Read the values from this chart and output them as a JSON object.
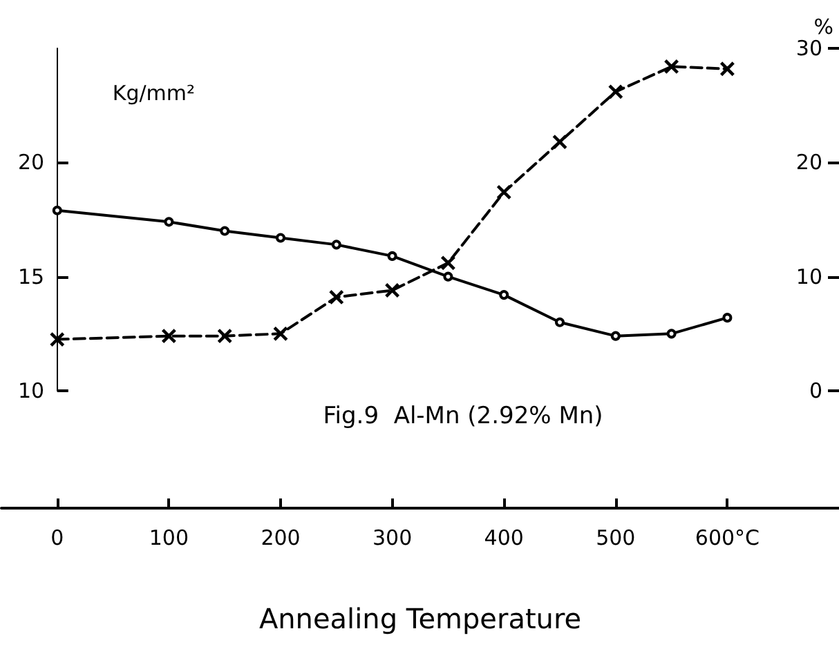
{
  "chart_data": {
    "type": "line",
    "title": "Fig.9  Al-Mn (2.92% Mn)",
    "xlabel": "Annealing Temperature",
    "ylabel": "Kg/mm²",
    "y2label": "%",
    "x": [
      0,
      100,
      150,
      200,
      250,
      300,
      350,
      400,
      450,
      500,
      550,
      600
    ],
    "series": [
      {
        "color": "#000000",
        "marker": "circle",
        "line_style": "solid",
        "values": [
          17.9,
          17.4,
          17.0,
          16.7,
          16.4,
          15.9,
          15.0,
          14.2,
          13.0,
          12.4,
          12.5,
          13.2
        ]
      },
      {
        "color": "#000000",
        "marker": "cross",
        "line_style": "dashed",
        "axis": "y2",
        "values": [
          4.5,
          4.8,
          4.8,
          5.0,
          8.2,
          8.8,
          11.2,
          17.4,
          21.8,
          26.2,
          28.4,
          28.2
        ]
      }
    ],
    "xlim": [
      -50,
      700
    ],
    "xticks": [
      0,
      100,
      200,
      300,
      400,
      500,
      {
        "value": 600,
        "label": "600°C"
      }
    ],
    "ylim": [
      10,
      25
    ],
    "yticks": [
      10,
      15,
      20
    ],
    "y2lim": [
      0,
      30
    ],
    "y2ticks": [
      0,
      10,
      20,
      30
    ],
    "grid": false
  }
}
